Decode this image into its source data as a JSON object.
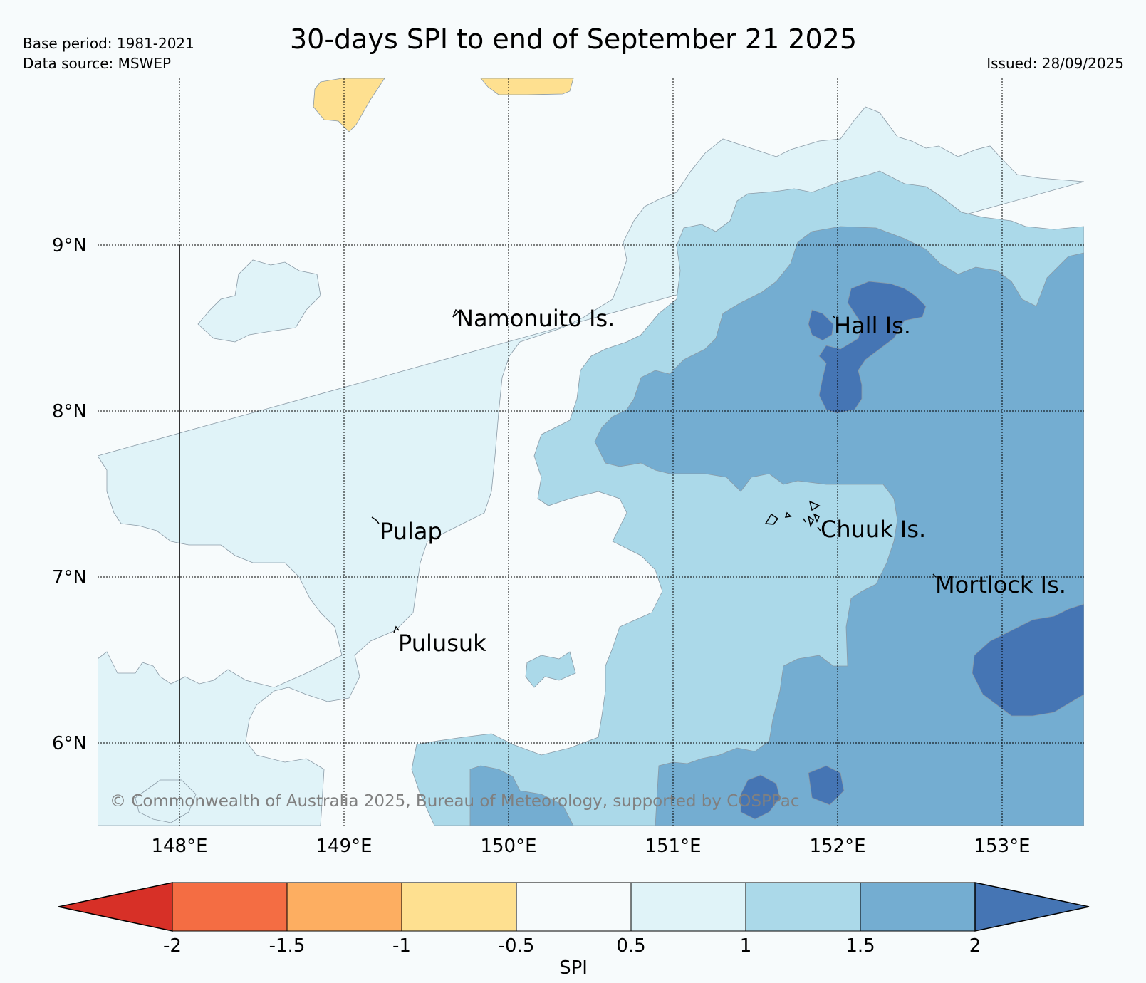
{
  "title": "30-days SPI to end of September 21 2025",
  "meta": {
    "base_period": "Base period: 1981-2021",
    "data_source": "Data source: MSWEP",
    "issued": "Issued: 28/09/2025"
  },
  "copyright": "© Commonwealth of Australia 2025, Bureau of Meteorology, supported by COSPPac",
  "map": {
    "lon_labels": [
      "148°E",
      "149°E",
      "150°E",
      "151°E",
      "152°E",
      "153°E"
    ],
    "lat_labels": [
      "9°N",
      "8°N",
      "7°N",
      "6°N"
    ],
    "places": [
      {
        "name": "Namonuito Is."
      },
      {
        "name": "Hall Is."
      },
      {
        "name": "Pulap"
      },
      {
        "name": "Chuuk Is."
      },
      {
        "name": "Mortlock Is."
      },
      {
        "name": "Pulusuk"
      }
    ]
  },
  "colorbar": {
    "label": "SPI",
    "ticks": [
      "-2",
      "-1.5",
      "-1",
      "-0.5",
      "0.5",
      "1",
      "1.5",
      "2"
    ],
    "colors": [
      "#d73027",
      "#f46d43",
      "#fdae61",
      "#fee090",
      "#f7fbfc",
      "#e0f3f8",
      "#abd9e9",
      "#74add1",
      "#4575b4"
    ]
  }
}
